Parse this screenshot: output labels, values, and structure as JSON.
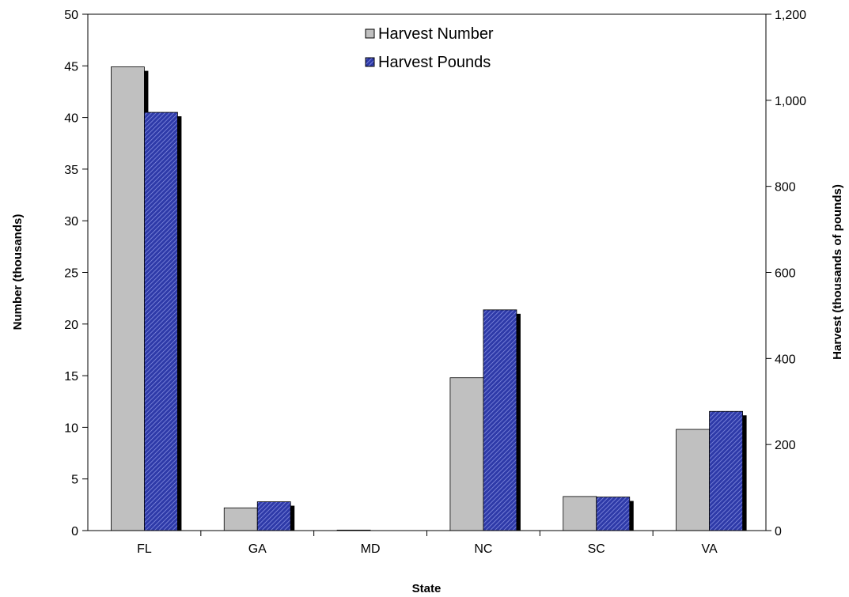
{
  "chart_data": {
    "type": "bar",
    "xlabel": "State",
    "ylabel_left": "Number (thousands)",
    "ylabel_right": "Harvest  (thousands of pounds)",
    "categories": [
      "FL",
      "GA",
      "MD",
      "NC",
      "SC",
      "VA"
    ],
    "series": [
      {
        "name": "Harvest Number",
        "axis": "left",
        "values": [
          44.9,
          2.2,
          0.05,
          14.8,
          3.3,
          9.8
        ],
        "color": "#c0c0c0"
      },
      {
        "name": "Harvest Pounds",
        "axis": "right",
        "values": [
          972,
          67,
          0,
          513,
          78,
          277
        ],
        "color": "#2e3aa8"
      }
    ],
    "ylim_left": [
      0,
      50
    ],
    "yticks_left": [
      0,
      5,
      10,
      15,
      20,
      25,
      30,
      35,
      40,
      45,
      50
    ],
    "ylim_right": [
      0,
      1200
    ],
    "yticks_right": [
      0,
      200,
      400,
      600,
      800,
      1000,
      1200
    ],
    "ytick_labels_right": [
      "0",
      "200",
      "400",
      "600",
      "800",
      "1,000",
      "1,200"
    ],
    "grid": false,
    "legend_position": "top-center"
  }
}
